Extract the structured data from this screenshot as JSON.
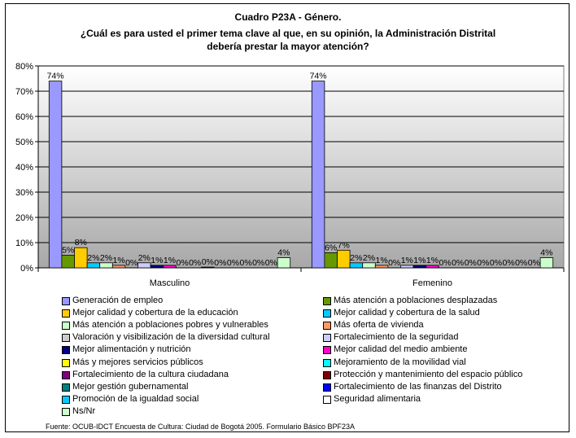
{
  "title_line1": "Cuadro P23A - Género.",
  "title_line2": "¿Cuál es para usted el primer tema clave al que, en su opinión, la Administración Distrital",
  "title_line3": "debería prestar la mayor atención?",
  "source": "Fuente: OCUB-IDCT Encuesta de Cultura: Ciudad de Bogotá 2005. Formulario Básico BPF23A",
  "chart_data": {
    "type": "bar",
    "categories": [
      "Masculino",
      "Femenino"
    ],
    "ylim": [
      0,
      80
    ],
    "yticks": [
      "0%",
      "10%",
      "20%",
      "30%",
      "40%",
      "50%",
      "60%",
      "70%",
      "80%"
    ],
    "grid": true,
    "legend_position": "bottom",
    "series": [
      {
        "name": "Generación de empleo",
        "color": "#9999ff",
        "values": [
          74,
          74
        ],
        "labels": [
          "74%",
          "74%"
        ]
      },
      {
        "name": "Más atención a poblaciones desplazadas",
        "color": "#669900",
        "values": [
          5,
          6
        ],
        "labels": [
          "5%",
          "6%"
        ]
      },
      {
        "name": "Mejor calidad y cobertura de la educación",
        "color": "#ffcc00",
        "values": [
          8,
          7
        ],
        "labels": [
          "8%",
          "7%"
        ]
      },
      {
        "name": "Mejor calidad y cobertura de la salud",
        "color": "#00ccff",
        "values": [
          2,
          2
        ],
        "labels": [
          "2%",
          "2%"
        ]
      },
      {
        "name": "Más atención a poblaciones pobres y vulnerables",
        "color": "#ccffcc",
        "values": [
          2,
          2
        ],
        "labels": [
          "2%",
          "2%"
        ]
      },
      {
        "name": "Más oferta de vivienda",
        "color": "#ff9966",
        "values": [
          1,
          1
        ],
        "labels": [
          "1%",
          "1%"
        ]
      },
      {
        "name": "Valoración y visibilización de la diversidad cultural",
        "color": "#cccccc",
        "values": [
          0,
          0
        ],
        "labels": [
          "0%",
          "0%"
        ]
      },
      {
        "name": "Fortalecimiento de la seguridad",
        "color": "#ccccff",
        "values": [
          2,
          1
        ],
        "labels": [
          "2%",
          "1%"
        ]
      },
      {
        "name": "Mejor alimentación y nutrición",
        "color": "#000080",
        "values": [
          1,
          1
        ],
        "labels": [
          "1%",
          "1%"
        ]
      },
      {
        "name": "Mejor calidad del medio ambiente",
        "color": "#ff00cc",
        "values": [
          1,
          1
        ],
        "labels": [
          "1%",
          "1%"
        ]
      },
      {
        "name": "Más y mejores servicios públicos",
        "color": "#ffff00",
        "values": [
          0,
          0
        ],
        "labels": [
          "0%",
          "0%"
        ]
      },
      {
        "name": "Mejoramiento de la movilidad vial",
        "color": "#00ffff",
        "values": [
          0,
          0
        ],
        "labels": [
          "0%",
          "0%"
        ]
      },
      {
        "name": "Fortalecimiento de la cultura ciudadana",
        "color": "#800080",
        "values": [
          0.3,
          0
        ],
        "labels": [
          "0%",
          "0%"
        ]
      },
      {
        "name": "Protección y mantenimiento del espacio público",
        "color": "#800000",
        "values": [
          0,
          0
        ],
        "labels": [
          "0%",
          "0%"
        ]
      },
      {
        "name": "Mejor gestión gubernamental",
        "color": "#008080",
        "values": [
          0,
          0
        ],
        "labels": [
          "0%",
          "0%"
        ]
      },
      {
        "name": "Fortalecimiento de las finanzas del Distrito",
        "color": "#0000ff",
        "values": [
          0,
          0
        ],
        "labels": [
          "0%",
          "0%"
        ]
      },
      {
        "name": "Promoción de la igualdad social",
        "color": "#00ccff",
        "values": [
          0,
          0
        ],
        "labels": [
          "0%",
          "0%"
        ]
      },
      {
        "name": "Seguridad alimentaria",
        "color": "#ffffff",
        "values": [
          0,
          0
        ],
        "labels": [
          "0%",
          "0%"
        ]
      },
      {
        "name": "Ns/Nr",
        "color": "#ccffcc",
        "values": [
          4,
          4
        ],
        "labels": [
          "4%",
          "4%"
        ]
      }
    ]
  }
}
